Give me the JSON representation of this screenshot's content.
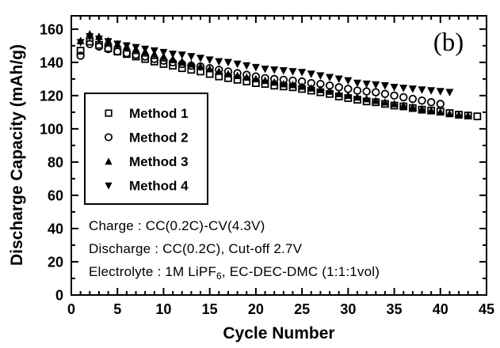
{
  "chart_data": {
    "type": "scatter",
    "panel_label": "(b)",
    "title": "",
    "xlabel": "Cycle Number",
    "ylabel": "Discharge Capacity (mAh/g)",
    "xlim": [
      0,
      45
    ],
    "ylim": [
      0,
      168
    ],
    "x_major_ticks": [
      0,
      5,
      10,
      15,
      20,
      25,
      30,
      35,
      40,
      45
    ],
    "x_minor_step": 1,
    "y_major_ticks": [
      0,
      20,
      40,
      60,
      80,
      100,
      120,
      140,
      160
    ],
    "y_minor_step": 10,
    "grid": false,
    "legend_position": "inside-upper-left",
    "ink_color": "#000000",
    "background_color": "#ffffff",
    "x": [
      1,
      2,
      3,
      4,
      5,
      6,
      7,
      8,
      9,
      10,
      11,
      12,
      13,
      14,
      15,
      16,
      17,
      18,
      19,
      20,
      21,
      22,
      23,
      24,
      25,
      26,
      27,
      28,
      29,
      30,
      31,
      32,
      33,
      34,
      35,
      36,
      37,
      38,
      39,
      40,
      41,
      42,
      43,
      44
    ],
    "series": [
      {
        "name": "Method 1",
        "marker": "open-square",
        "values": [
          147,
          152.5,
          150.5,
          148.5,
          146.5,
          145,
          143.5,
          142,
          140.5,
          139,
          138,
          136.5,
          135.5,
          134.5,
          133,
          131.5,
          130.5,
          129.5,
          128.5,
          127.5,
          127,
          126,
          125.5,
          125,
          124,
          123,
          122,
          121,
          119.5,
          118.5,
          117.5,
          116.5,
          116,
          115,
          114,
          113.5,
          112.5,
          111.5,
          111,
          110.5,
          109.5,
          108.5,
          108,
          107.5
        ]
      },
      {
        "name": "Method 2",
        "marker": "open-circle",
        "values": [
          144,
          151,
          149.5,
          148,
          146.5,
          145.5,
          144.5,
          143.5,
          142,
          141,
          140,
          139,
          138,
          137.5,
          136.5,
          135.5,
          134.5,
          133.5,
          132.5,
          131.5,
          130.5,
          130,
          129.5,
          129,
          128.5,
          127.5,
          127,
          126,
          125,
          124,
          123,
          122.5,
          122,
          121,
          120,
          119,
          118,
          117,
          116,
          115
        ]
      },
      {
        "name": "Method 3",
        "marker": "filled-triangle-up",
        "values": [
          153,
          157,
          155.5,
          153,
          151,
          149.5,
          148,
          146.5,
          145,
          143.5,
          142,
          140.5,
          139,
          137.5,
          136,
          134.5,
          133,
          132,
          131,
          130,
          129,
          128,
          127,
          126.5,
          125.5,
          124.5,
          123.5,
          122.5,
          121,
          120,
          119,
          118,
          117,
          116,
          115,
          114,
          113,
          112,
          111,
          110,
          109,
          108.5,
          108
        ]
      },
      {
        "name": "Method 4",
        "marker": "filled-triangle-down",
        "values": [
          152,
          155.5,
          154,
          152.5,
          151,
          150,
          149,
          148,
          147,
          146,
          145,
          144.5,
          143.5,
          142.5,
          141.5,
          140.5,
          140,
          139,
          138,
          137,
          136,
          135.5,
          135,
          134.5,
          134,
          133,
          132,
          131,
          130,
          129,
          127.5,
          127,
          126.5,
          126,
          125,
          124.5,
          124,
          123.5,
          123,
          122.5,
          122
        ]
      }
    ],
    "annotations": [
      {
        "text": "Charge : CC(0.2C)-CV(4.3V)"
      },
      {
        "text": "Discharge : CC(0.2C), Cut-off 2.7V"
      },
      {
        "prefix": "Electrolyte : 1M LiPF",
        "sub": "6",
        "suffix": ", EC-DEC-DMC (1:1:1vol)"
      }
    ]
  }
}
